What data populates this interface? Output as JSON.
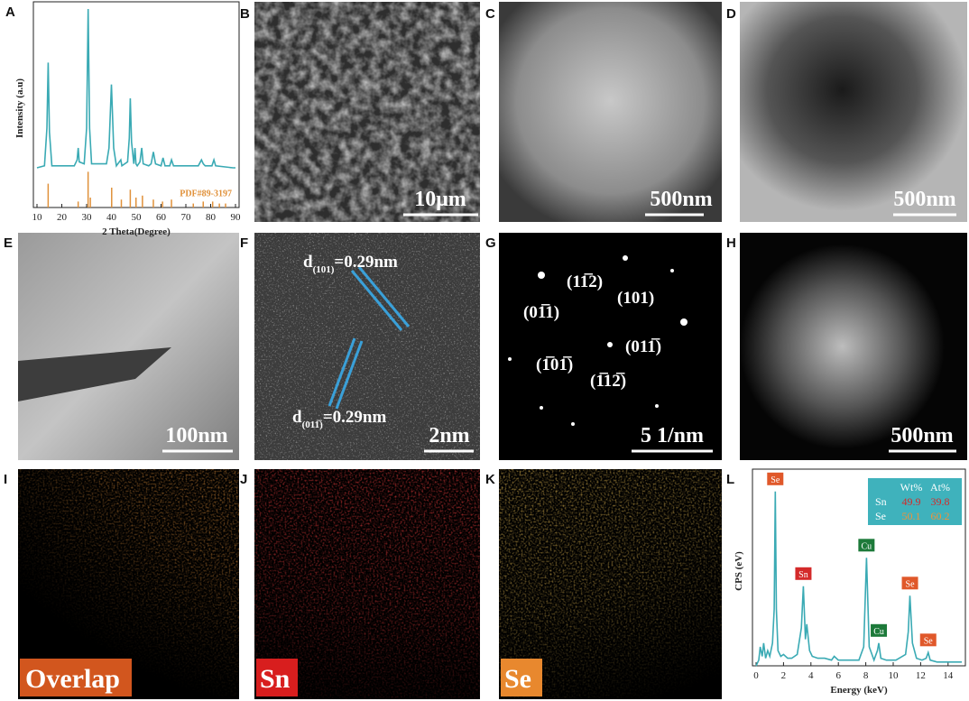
{
  "panel_letters": [
    "A",
    "B",
    "C",
    "D",
    "E",
    "F",
    "G",
    "H",
    "I",
    "J",
    "K",
    "L"
  ],
  "scale_bars": [
    "10μm",
    "500nm",
    "500nm",
    "100nm",
    "2nm",
    "5 1/nm",
    "500nm"
  ],
  "hrtem_labels": [
    {
      "symbol": "d",
      "subscript": "(101)",
      "text": "=0.29nm"
    },
    {
      "symbol": "d",
      "subscript": "(011̅)",
      "text": "=0.29nm"
    }
  ],
  "saed_labels": [
    "(11̅2)",
    "(101)",
    "(01̅1)",
    "(011̅)",
    "(1̅01̅)",
    "(1̅12̅)"
  ],
  "map_labels": [
    "Overlap",
    "Sn",
    "Se"
  ],
  "chart_data": [
    {
      "type": "line",
      "xlabel": "2 Theta(Degree)",
      "ylabel": "Intensity (a.u)",
      "xlim": [
        10,
        90
      ],
      "xticks": [
        10,
        20,
        30,
        40,
        50,
        60,
        70,
        80,
        90
      ],
      "ylim": [
        0,
        100
      ],
      "series": [
        {
          "color": "#3aaab4",
          "x": [
            10,
            13,
            14,
            14.5,
            15,
            16,
            25,
            26.2,
            26.6,
            27,
            29,
            30,
            30.6,
            31.2,
            32,
            38,
            39,
            40,
            40.9,
            42,
            43.8,
            44.2,
            46.5,
            47.2,
            47.6,
            48.1,
            49,
            49.5,
            49.9,
            50.4,
            51.5,
            52.2,
            52.8,
            55,
            56,
            56.9,
            57.8,
            60,
            60.8,
            61.6,
            63.5,
            64.2,
            65,
            75,
            76.3,
            77,
            77.8,
            80.5,
            81.3,
            82,
            89,
            90
          ],
          "values": [
            20,
            21,
            40,
            73,
            38,
            21,
            21,
            24,
            30,
            23,
            22,
            40,
            100,
            40,
            22,
            22,
            30,
            62,
            30,
            21,
            24,
            21,
            23,
            35,
            55,
            33,
            22,
            30,
            22,
            21,
            23,
            30,
            22,
            21,
            22,
            28,
            22,
            21,
            25,
            21,
            21,
            24,
            21,
            21,
            24,
            22,
            21,
            21,
            24,
            21,
            20,
            20
          ]
        },
        {
          "name": "PDF#89-3197",
          "type": "stick",
          "color": "#e0913a",
          "x": [
            14.5,
            26.6,
            30.6,
            31.5,
            40.1,
            44,
            47.6,
            49.9,
            52.5,
            56.9,
            60.6,
            64.2,
            73,
            77,
            80.8,
            83.5,
            86
          ],
          "values": [
            12,
            3,
            18,
            5,
            10,
            4,
            9,
            5,
            6,
            4,
            3,
            4,
            2,
            3,
            3,
            2,
            2
          ]
        }
      ]
    },
    {
      "type": "line",
      "xlabel": "Energy (keV)",
      "ylabel": "CPS (eV)",
      "xlim": [
        0,
        15
      ],
      "xticks": [
        0,
        2,
        4,
        6,
        8,
        10,
        12,
        14
      ],
      "ylim": [
        0,
        100
      ],
      "series": [
        {
          "color": "#3aaab4",
          "x": [
            0,
            0.2,
            0.3,
            0.45,
            0.55,
            0.7,
            0.85,
            1.0,
            1.2,
            1.32,
            1.4,
            1.48,
            1.6,
            1.8,
            2.0,
            2.3,
            2.6,
            3.0,
            3.3,
            3.45,
            3.6,
            3.7,
            3.9,
            4.1,
            4.5,
            5.0,
            5.5,
            5.7,
            6.0,
            6.5,
            7.0,
            7.5,
            7.85,
            8.05,
            8.25,
            8.6,
            8.85,
            8.95,
            9.1,
            9.5,
            10.2,
            10.9,
            11.1,
            11.22,
            11.4,
            11.7,
            12.1,
            12.4,
            12.55,
            12.7,
            13.2,
            14,
            15
          ],
          "values": [
            0,
            3,
            10,
            5,
            12,
            4,
            8,
            5,
            12,
            30,
            92,
            30,
            8,
            5,
            6,
            4,
            4,
            6,
            20,
            42,
            14,
            22,
            8,
            5,
            4,
            4,
            3,
            5,
            3,
            3,
            3,
            3,
            10,
            57,
            10,
            3,
            8,
            12,
            4,
            3,
            3,
            6,
            18,
            37,
            12,
            4,
            3,
            4,
            7,
            3,
            2,
            2,
            2
          ]
        }
      ],
      "peak_labels": [
        {
          "text": "Se",
          "x": 1.4,
          "color": "#e0582a"
        },
        {
          "text": "Sn",
          "x": 3.45,
          "color": "#d42a2a"
        },
        {
          "text": "Cu",
          "x": 8.05,
          "color": "#1d7a3a"
        },
        {
          "text": "Cu",
          "x": 8.95,
          "color": "#1d7a3a"
        },
        {
          "text": "Se",
          "x": 11.22,
          "color": "#e0582a"
        },
        {
          "text": "Se",
          "x": 12.55,
          "color": "#e0582a"
        }
      ],
      "table": {
        "header": [
          "Wt%",
          "At%"
        ],
        "rows": [
          [
            "Sn",
            49.9,
            39.8
          ],
          [
            "Se",
            50.1,
            60.2
          ]
        ]
      }
    }
  ]
}
